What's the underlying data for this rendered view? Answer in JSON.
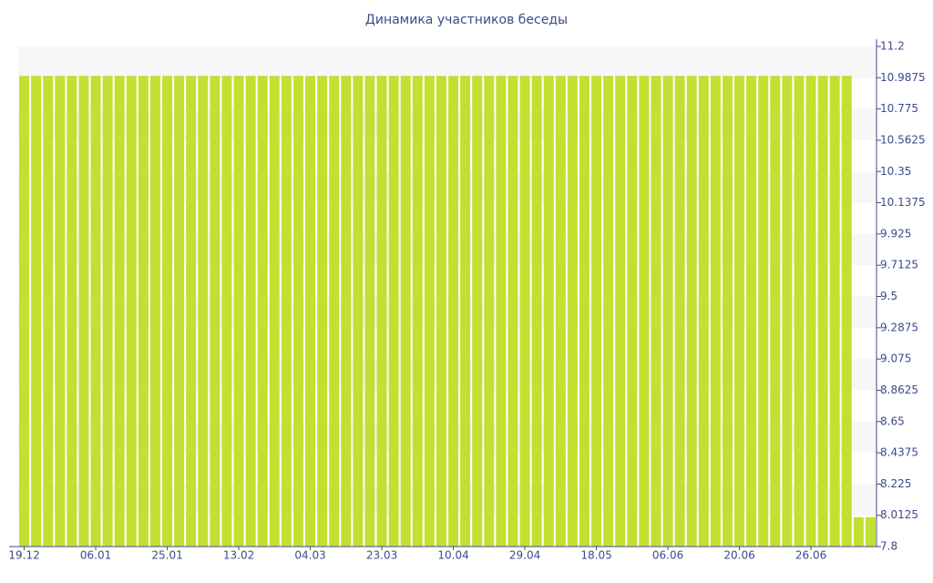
{
  "chart_data": {
    "type": "bar",
    "title": "Динамика участников беседы",
    "categories": [
      "19.12",
      null,
      null,
      null,
      null,
      null,
      "06.01",
      null,
      null,
      null,
      null,
      null,
      "25.01",
      null,
      null,
      null,
      null,
      null,
      "13.02",
      null,
      null,
      null,
      null,
      null,
      "04.03",
      null,
      null,
      null,
      null,
      null,
      "23.03",
      null,
      null,
      null,
      null,
      null,
      "10.04",
      null,
      null,
      null,
      null,
      null,
      "29.04",
      null,
      null,
      null,
      null,
      null,
      "18.05",
      null,
      null,
      null,
      null,
      null,
      "06.06",
      null,
      null,
      null,
      null,
      null,
      "20.06",
      null,
      null,
      null,
      null,
      null,
      "26.06",
      null,
      null,
      null,
      null,
      null
    ],
    "values": [
      11,
      11,
      11,
      11,
      11,
      11,
      11,
      11,
      11,
      11,
      11,
      11,
      11,
      11,
      11,
      11,
      11,
      11,
      11,
      11,
      11,
      11,
      11,
      11,
      11,
      11,
      11,
      11,
      11,
      11,
      11,
      11,
      11,
      11,
      11,
      11,
      11,
      11,
      11,
      11,
      11,
      11,
      11,
      11,
      11,
      11,
      11,
      11,
      11,
      11,
      11,
      11,
      11,
      11,
      11,
      11,
      11,
      11,
      11,
      11,
      11,
      11,
      11,
      11,
      11,
      11,
      11,
      11,
      11,
      11,
      8,
      8
    ],
    "color": "#c2e032",
    "ylim": [
      7.8,
      11.2
    ],
    "yticks": [
      7.8,
      8.0125,
      8.225,
      8.4375,
      8.65,
      8.8625,
      9.075,
      9.2875,
      9.5,
      9.7125,
      9.925,
      10.1375,
      10.35,
      10.5625,
      10.775,
      10.9875,
      11.2
    ],
    "grid": true
  }
}
